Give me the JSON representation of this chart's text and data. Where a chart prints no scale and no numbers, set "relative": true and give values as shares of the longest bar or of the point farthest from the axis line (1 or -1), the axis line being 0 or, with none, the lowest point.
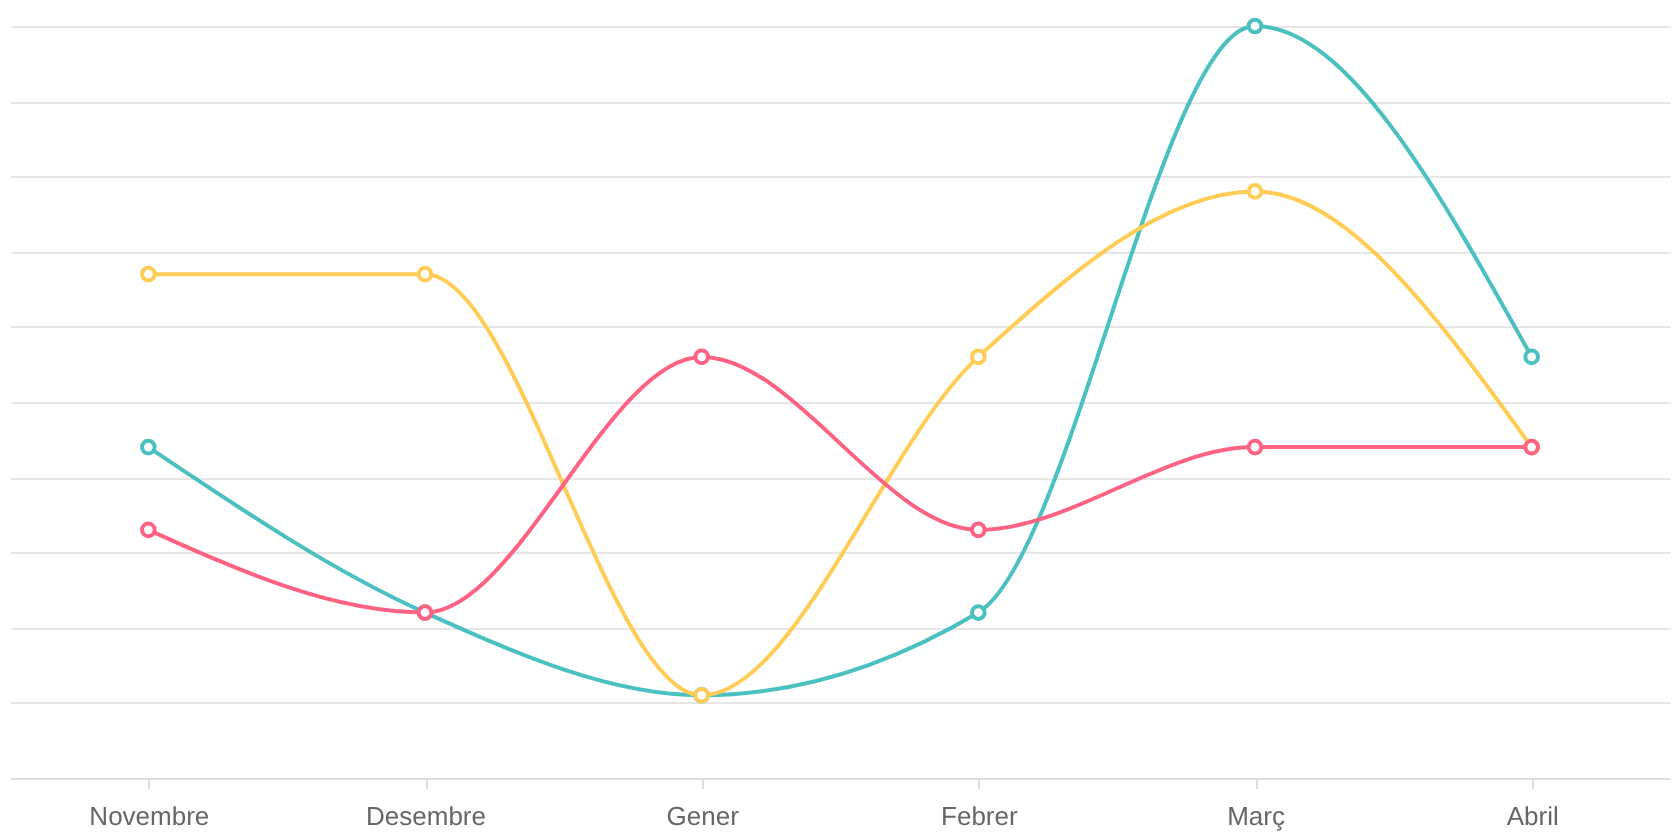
{
  "chart_data": {
    "type": "line",
    "relative": true,
    "categories": [
      "Novembre",
      "Desembre",
      "Gener",
      "Febrer",
      "Març",
      "Abril"
    ],
    "series": [
      {
        "color": "#4bc0c0",
        "values": [
          0.44,
          0.22,
          0.11,
          0.22,
          1,
          0.56
        ]
      },
      {
        "color": "#ffcd56",
        "values": [
          0.67,
          0.67,
          0.11,
          0.56,
          0.78,
          0.44
        ]
      },
      {
        "color": "#ff6384",
        "values": [
          0.33,
          0.22,
          0.56,
          0.33,
          0.44,
          0.44
        ]
      }
    ],
    "grid": "y",
    "marker": "circle",
    "legend": false
  }
}
